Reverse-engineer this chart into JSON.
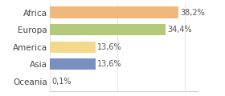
{
  "categories": [
    "Africa",
    "Europa",
    "America",
    "Asia",
    "Oceania"
  ],
  "values": [
    38.2,
    34.4,
    13.6,
    13.6,
    0.1
  ],
  "labels": [
    "38,2%",
    "34,4%",
    "13,6%",
    "13,6%",
    "0,1%"
  ],
  "bar_colors": [
    "#f0b87a",
    "#b5c97a",
    "#f5d98a",
    "#7a8fbf",
    "#d0d0d0"
  ],
  "background_color": "#ffffff",
  "xlim": [
    0,
    44
  ],
  "bar_height": 0.65,
  "label_fontsize": 7,
  "tick_fontsize": 7.5
}
